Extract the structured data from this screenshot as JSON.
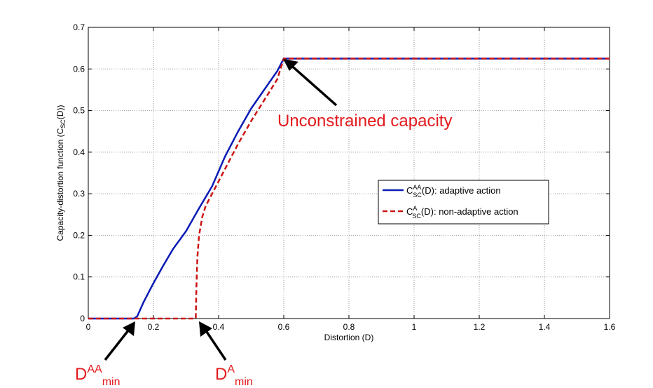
{
  "chart_data": {
    "type": "line",
    "xlabel": "Distortion (D)",
    "ylabel": {
      "main": "Capacity-distortion function (C",
      "sub": "SC",
      "tail": "(D))"
    },
    "xlim": [
      0,
      1.6
    ],
    "ylim": [
      0,
      0.7
    ],
    "xticks": [
      0,
      0.2,
      0.4,
      0.6,
      0.8,
      1,
      1.2,
      1.4,
      1.6
    ],
    "xtick_labels": [
      "0",
      "0.2",
      "0.4",
      "0.6",
      "0.8",
      "1",
      "1.2",
      "1.4",
      "1.6"
    ],
    "yticks": [
      0,
      0.1,
      0.2,
      0.3,
      0.4,
      0.5,
      0.6,
      0.7
    ],
    "ytick_labels": [
      "0",
      "0.1",
      "0.2",
      "0.3",
      "0.4",
      "0.5",
      "0.6",
      "0.7"
    ],
    "grid": true,
    "legend_position": "right",
    "series": [
      {
        "name": "C_SC^AA(D): adaptive action",
        "legend": {
          "base": "C",
          "sup": "AA",
          "sub": "SC",
          "tail": "(D): adaptive action"
        },
        "color": "#0b1bb5",
        "dash": "solid",
        "x": [
          0,
          0.14,
          0.15,
          0.17,
          0.2,
          0.23,
          0.26,
          0.3,
          0.34,
          0.38,
          0.42,
          0.46,
          0.5,
          0.54,
          0.58,
          0.6,
          0.7,
          0.8,
          1.0,
          1.2,
          1.4,
          1.6
        ],
        "y": [
          0,
          0,
          0.005,
          0.04,
          0.085,
          0.127,
          0.167,
          0.21,
          0.265,
          0.318,
          0.39,
          0.45,
          0.505,
          0.55,
          0.595,
          0.625,
          0.625,
          0.625,
          0.625,
          0.625,
          0.625,
          0.625
        ]
      },
      {
        "name": "C_SC^A(D): non-adaptive action",
        "legend": {
          "base": "C",
          "sup": "A",
          "sub": "SC",
          "tail": "(D): non-adaptive action"
        },
        "color": "#cc1414",
        "dash": "dashed",
        "x": [
          0,
          0.33,
          0.332,
          0.335,
          0.34,
          0.35,
          0.36,
          0.38,
          0.4,
          0.43,
          0.46,
          0.5,
          0.54,
          0.58,
          0.6,
          0.7,
          0.8,
          1.0,
          1.2,
          1.4,
          1.6
        ],
        "y": [
          0,
          0,
          0.08,
          0.15,
          0.2,
          0.245,
          0.27,
          0.3,
          0.33,
          0.375,
          0.42,
          0.475,
          0.525,
          0.575,
          0.625,
          0.625,
          0.625,
          0.625,
          0.625,
          0.625,
          0.625
        ]
      }
    ],
    "annotations": {
      "unconstrained": {
        "text": "Unconstrained capacity",
        "point": [
          0.6,
          0.625
        ]
      },
      "dmin_aa": {
        "base": "D",
        "sup": "AA",
        "sub": "min",
        "point": [
          0.145,
          0
        ]
      },
      "dmin_a": {
        "base": "D",
        "sup": "A",
        "sub": "min",
        "point": [
          0.33,
          0
        ]
      }
    },
    "annotation_color": "#e31a1c"
  }
}
